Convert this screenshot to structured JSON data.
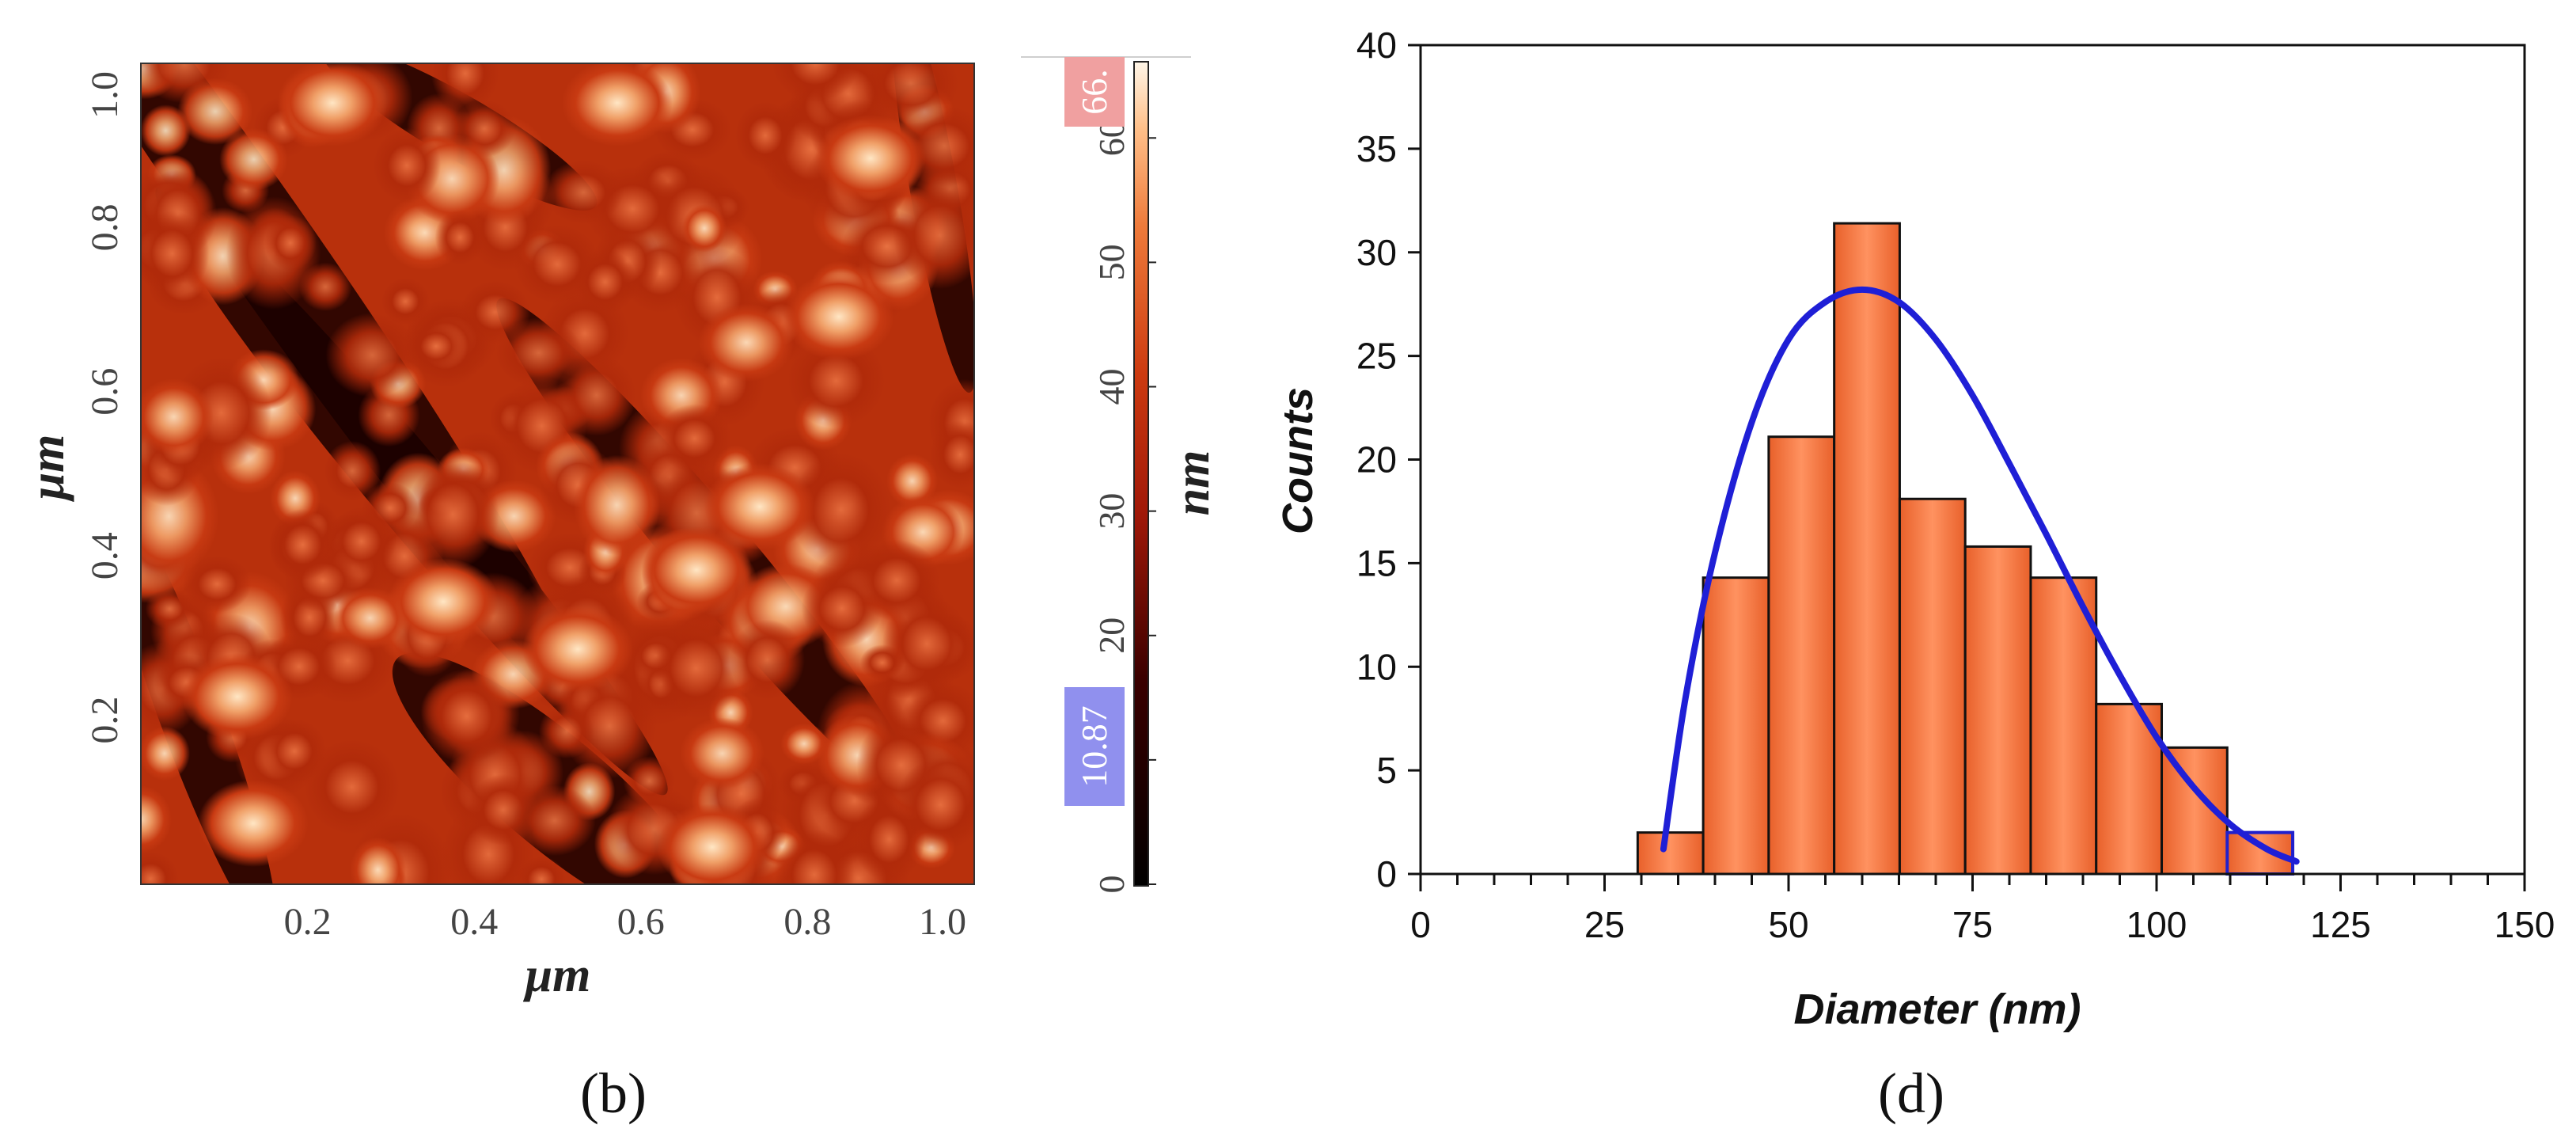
{
  "panel_b": {
    "label": "(b)",
    "x_axis_label": "μm",
    "y_axis_label": "μm",
    "x_ticks": [
      "0.2",
      "0.4",
      "0.6",
      "0.8",
      "1.0"
    ],
    "y_ticks": [
      "0.2",
      "0.4",
      "0.6",
      "0.8",
      "1.0"
    ],
    "colorbar": {
      "label": "nm",
      "ticks": [
        "0",
        "10",
        "20",
        "30",
        "40",
        "50",
        "60"
      ],
      "max_marker": "66.",
      "min_marker": "10.87",
      "max_marker_color": "#f0a0a0",
      "min_marker_color": "#9090ee"
    }
  },
  "panel_d": {
    "label": "(d)",
    "bar_color": "#f07a45",
    "fit_color": "#1f1fd6"
  },
  "chart_data": [
    {
      "type": "heatmap",
      "xlabel": "μm",
      "ylabel": "μm",
      "xlim": [
        0,
        1.0
      ],
      "ylim": [
        0,
        1.0
      ],
      "x_ticks": [
        0.2,
        0.4,
        0.6,
        0.8,
        1.0
      ],
      "y_ticks": [
        0.2,
        0.4,
        0.6,
        0.8,
        1.0
      ],
      "colorbar_label": "nm",
      "colorbar_range": [
        0,
        66
      ],
      "colorbar_ticks": [
        0,
        10,
        20,
        30,
        40,
        50,
        60
      ]
    },
    {
      "type": "bar",
      "xlabel": "Diameter (nm)",
      "ylabel": "Counts",
      "xlim": [
        0,
        150
      ],
      "ylim": [
        0,
        40
      ],
      "x_ticks": [
        0,
        25,
        50,
        75,
        100,
        125,
        150
      ],
      "y_ticks": [
        0,
        5,
        10,
        15,
        20,
        25,
        30,
        35,
        40
      ],
      "bins": [
        {
          "start": 29.5,
          "end": 38.4,
          "count": 2
        },
        {
          "start": 38.4,
          "end": 47.3,
          "count": 14.3
        },
        {
          "start": 47.3,
          "end": 56.2,
          "count": 21.1
        },
        {
          "start": 56.2,
          "end": 65.1,
          "count": 31.4
        },
        {
          "start": 65.1,
          "end": 74.0,
          "count": 18.1
        },
        {
          "start": 74.0,
          "end": 82.9,
          "count": 15.8
        },
        {
          "start": 82.9,
          "end": 91.8,
          "count": 14.3
        },
        {
          "start": 91.8,
          "end": 100.7,
          "count": 8.2
        },
        {
          "start": 100.7,
          "end": 109.6,
          "count": 6.1
        },
        {
          "start": 109.6,
          "end": 118.5,
          "count": 2
        }
      ],
      "fit_curve": {
        "x": [
          33,
          36,
          40,
          45,
          50,
          55,
          60,
          65,
          70,
          75,
          80,
          85,
          90,
          95,
          100,
          105,
          110,
          115,
          119
        ],
        "y": [
          1.2,
          8.5,
          15.5,
          21.8,
          25.8,
          27.6,
          28.2,
          27.6,
          25.8,
          23.1,
          19.8,
          16.4,
          12.9,
          9.6,
          6.6,
          4.2,
          2.4,
          1.2,
          0.6
        ]
      }
    }
  ]
}
